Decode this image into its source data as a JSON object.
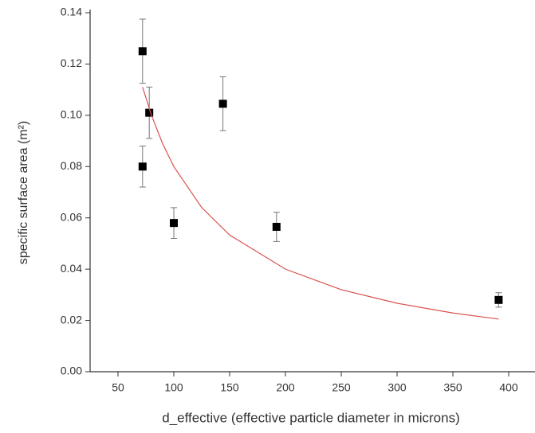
{
  "chart_data": {
    "type": "scatter",
    "x_label": "d_effective (effective particle diameter in microns)",
    "y_label": "specific surface area (m²)",
    "xlim": [
      25,
      420
    ],
    "xticks": [
      50,
      100,
      150,
      200,
      250,
      300,
      350,
      400
    ],
    "ylim": [
      0,
      0.14
    ],
    "yticks": [
      {
        "value": 0,
        "label": "0.00"
      },
      {
        "value": 0.02,
        "label": "0.02"
      },
      {
        "value": 0.04,
        "label": "0.04"
      },
      {
        "value": 0.06,
        "label": "0.06"
      },
      {
        "value": 0.08,
        "label": "0.08"
      },
      {
        "value": 0.1,
        "label": "0.10"
      },
      {
        "value": 0.12,
        "label": "0.12"
      },
      {
        "value": 0.14,
        "label": "0.14"
      }
    ],
    "series": [
      {
        "type": "scatter",
        "color": "#000000",
        "x": [
          72,
          72,
          78,
          100,
          144,
          192,
          391
        ],
        "values": [
          0.125,
          0.08,
          0.101,
          0.058,
          0.1045,
          0.0565,
          0.028
        ],
        "errors": [
          0.0125,
          0.008,
          0.01,
          0.006,
          0.0105,
          0.0057,
          0.0028
        ]
      },
      {
        "type": "line",
        "color": "#d9534f",
        "x": [
          72,
          80,
          90,
          100,
          125,
          150,
          200,
          250,
          300,
          350,
          391
        ],
        "values": [
          0.111,
          0.1,
          0.0889,
          0.08,
          0.064,
          0.0533,
          0.04,
          0.032,
          0.0267,
          0.0229,
          0.0205
        ]
      }
    ]
  }
}
